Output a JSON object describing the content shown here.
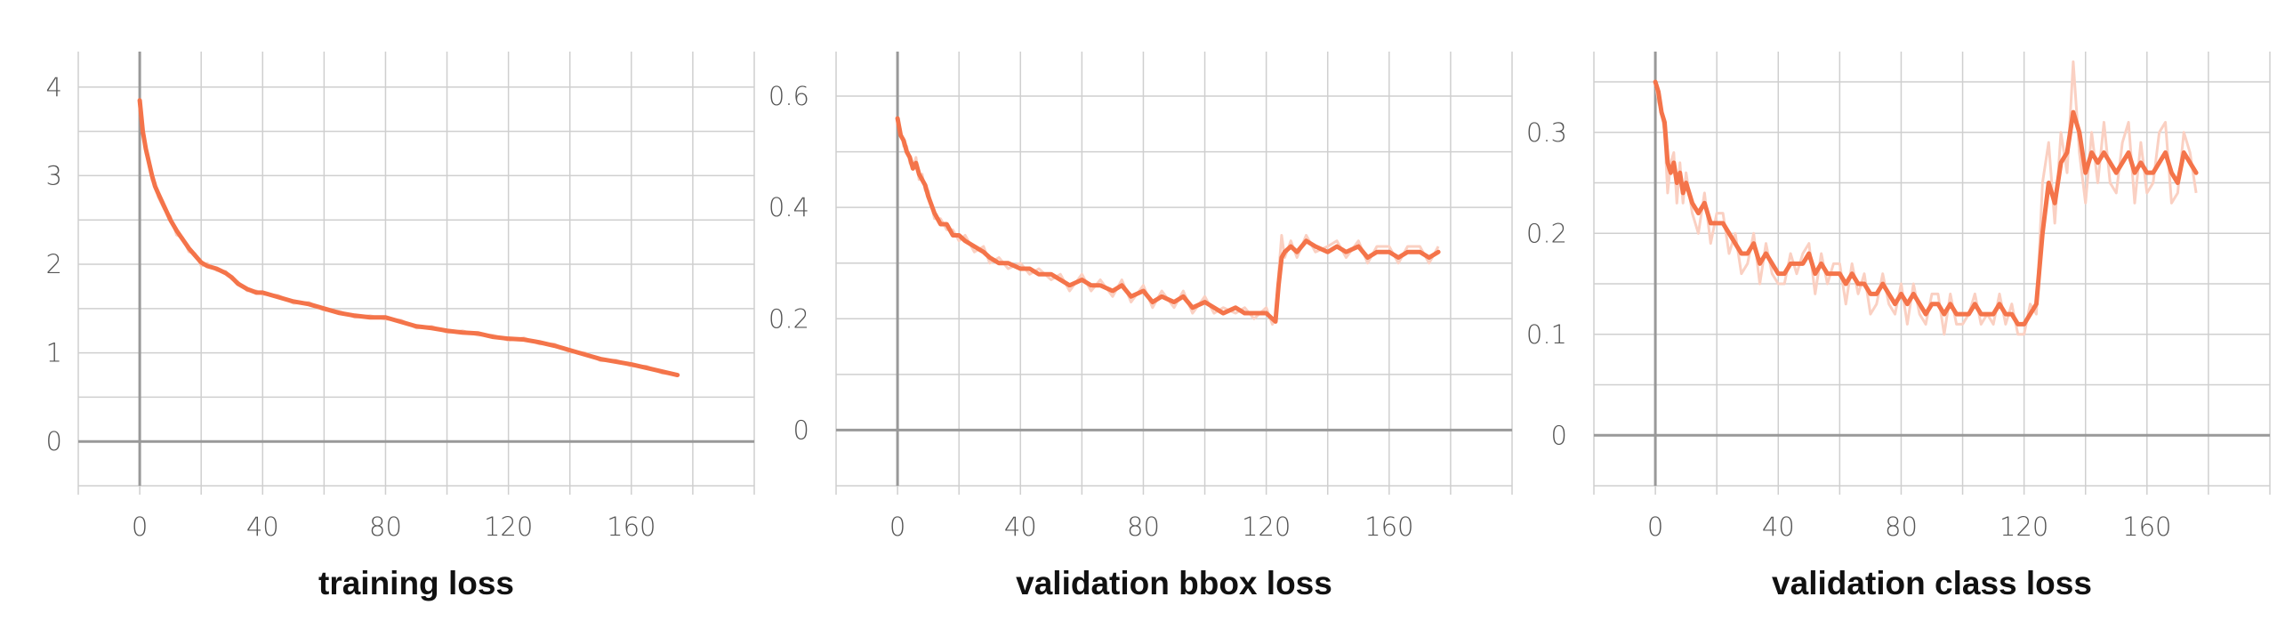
{
  "style": {
    "line_color": "#f4744a",
    "raw_color": "#fad0c2",
    "grid_color": "#cfcfcf",
    "axis_color": "#999999"
  },
  "chart_data": [
    {
      "type": "line",
      "title": "training loss",
      "xlabel": "",
      "ylabel": "",
      "xlim": [
        -20,
        200
      ],
      "ylim": [
        -0.5,
        4.4
      ],
      "xticks": [
        0,
        40,
        80,
        120,
        160
      ],
      "yticks": [
        0,
        1,
        2,
        3,
        4
      ],
      "grid": true,
      "series": [
        {
          "x": [
            0,
            1,
            2,
            3,
            4,
            5,
            6,
            8,
            10,
            12,
            14,
            16,
            18,
            20,
            22,
            25,
            28,
            30,
            32,
            35,
            38,
            40,
            45,
            50,
            55,
            60,
            65,
            70,
            75,
            80,
            85,
            90,
            95,
            100,
            105,
            110,
            115,
            120,
            125,
            130,
            135,
            140,
            145,
            150,
            155,
            160,
            165,
            170,
            175
          ],
          "y": [
            3.85,
            3.5,
            3.3,
            3.15,
            3.0,
            2.88,
            2.8,
            2.65,
            2.5,
            2.38,
            2.28,
            2.18,
            2.1,
            2.02,
            1.98,
            1.95,
            1.9,
            1.85,
            1.78,
            1.72,
            1.68,
            1.68,
            1.63,
            1.58,
            1.55,
            1.5,
            1.45,
            1.42,
            1.4,
            1.4,
            1.35,
            1.3,
            1.28,
            1.25,
            1.23,
            1.22,
            1.18,
            1.16,
            1.15,
            1.12,
            1.08,
            1.03,
            0.98,
            0.93,
            0.9,
            0.87,
            0.83,
            0.79,
            0.75
          ],
          "raw_y": [
            3.78,
            3.55,
            3.25,
            3.18,
            2.95,
            2.92,
            2.76,
            2.62,
            2.54,
            2.33,
            2.3,
            2.14,
            2.12,
            1.98,
            2.01,
            1.93,
            1.92,
            1.83,
            1.8,
            1.7,
            1.7,
            1.66,
            1.65,
            1.56,
            1.57,
            1.48,
            1.47,
            1.4,
            1.42,
            1.38,
            1.37,
            1.28,
            1.3,
            1.23,
            1.25,
            1.2,
            1.2,
            1.14,
            1.17,
            1.1,
            1.1,
            1.01,
            1.0,
            0.91,
            0.92,
            0.85,
            0.85,
            0.77,
            0.76
          ]
        }
      ]
    },
    {
      "type": "line",
      "title": "validation bbox loss",
      "xlabel": "",
      "ylabel": "",
      "xlim": [
        -20,
        200
      ],
      "ylim": [
        -0.1,
        0.68
      ],
      "xticks": [
        0,
        40,
        80,
        120,
        160
      ],
      "yticks": [
        0,
        0.2,
        0.4,
        0.6
      ],
      "grid": true,
      "series": [
        {
          "x": [
            0,
            1,
            2,
            3,
            4,
            5,
            6,
            7,
            8,
            9,
            10,
            12,
            14,
            16,
            18,
            20,
            22,
            25,
            28,
            30,
            33,
            36,
            40,
            43,
            46,
            50,
            53,
            56,
            60,
            63,
            66,
            70,
            73,
            76,
            80,
            83,
            86,
            90,
            93,
            96,
            100,
            103,
            106,
            110,
            113,
            116,
            120,
            122,
            123,
            124,
            125,
            126,
            128,
            130,
            133,
            136,
            140,
            143,
            146,
            150,
            153,
            156,
            160,
            163,
            166,
            170,
            173,
            176
          ],
          "y": [
            0.56,
            0.53,
            0.52,
            0.5,
            0.49,
            0.47,
            0.48,
            0.46,
            0.45,
            0.44,
            0.42,
            0.39,
            0.37,
            0.37,
            0.35,
            0.35,
            0.34,
            0.33,
            0.32,
            0.31,
            0.3,
            0.3,
            0.29,
            0.29,
            0.28,
            0.28,
            0.27,
            0.26,
            0.27,
            0.26,
            0.26,
            0.25,
            0.26,
            0.24,
            0.25,
            0.23,
            0.24,
            0.23,
            0.24,
            0.22,
            0.23,
            0.22,
            0.21,
            0.22,
            0.21,
            0.21,
            0.21,
            0.2,
            0.195,
            0.26,
            0.31,
            0.32,
            0.33,
            0.32,
            0.34,
            0.33,
            0.32,
            0.33,
            0.32,
            0.33,
            0.31,
            0.32,
            0.32,
            0.31,
            0.32,
            0.32,
            0.31,
            0.32
          ],
          "raw_y": [
            0.56,
            0.54,
            0.51,
            0.51,
            0.48,
            0.47,
            0.49,
            0.45,
            0.46,
            0.43,
            0.43,
            0.38,
            0.38,
            0.36,
            0.36,
            0.34,
            0.35,
            0.32,
            0.33,
            0.3,
            0.31,
            0.29,
            0.3,
            0.28,
            0.29,
            0.27,
            0.28,
            0.25,
            0.28,
            0.25,
            0.27,
            0.24,
            0.27,
            0.23,
            0.26,
            0.22,
            0.25,
            0.22,
            0.25,
            0.21,
            0.24,
            0.21,
            0.22,
            0.21,
            0.22,
            0.2,
            0.22,
            0.19,
            0.2,
            0.28,
            0.35,
            0.31,
            0.34,
            0.31,
            0.35,
            0.32,
            0.33,
            0.34,
            0.31,
            0.34,
            0.3,
            0.33,
            0.33,
            0.3,
            0.33,
            0.33,
            0.3,
            0.33
          ]
        }
      ]
    },
    {
      "type": "line",
      "title": "validation class loss",
      "xlabel": "",
      "ylabel": "",
      "xlim": [
        -20,
        200
      ],
      "ylim": [
        -0.05,
        0.38
      ],
      "xticks": [
        0,
        40,
        80,
        120,
        160
      ],
      "yticks": [
        0,
        0.1,
        0.2,
        0.3
      ],
      "grid": true,
      "series": [
        {
          "x": [
            0,
            1,
            2,
            3,
            4,
            5,
            6,
            7,
            8,
            9,
            10,
            12,
            14,
            16,
            18,
            20,
            22,
            24,
            26,
            28,
            30,
            32,
            34,
            36,
            38,
            40,
            42,
            44,
            46,
            48,
            50,
            52,
            54,
            56,
            58,
            60,
            62,
            64,
            66,
            68,
            70,
            72,
            74,
            76,
            78,
            80,
            82,
            84,
            86,
            88,
            90,
            92,
            94,
            96,
            98,
            100,
            102,
            104,
            106,
            108,
            110,
            112,
            114,
            116,
            118,
            120,
            122,
            124,
            126,
            128,
            130,
            132,
            134,
            136,
            138,
            140,
            142,
            144,
            146,
            148,
            150,
            152,
            154,
            156,
            158,
            160,
            162,
            164,
            166,
            168,
            170,
            172,
            174,
            176
          ],
          "y": [
            0.35,
            0.34,
            0.32,
            0.31,
            0.27,
            0.26,
            0.27,
            0.25,
            0.26,
            0.24,
            0.25,
            0.23,
            0.22,
            0.23,
            0.21,
            0.21,
            0.21,
            0.2,
            0.19,
            0.18,
            0.18,
            0.19,
            0.17,
            0.18,
            0.17,
            0.16,
            0.16,
            0.17,
            0.17,
            0.17,
            0.18,
            0.16,
            0.17,
            0.16,
            0.16,
            0.16,
            0.15,
            0.16,
            0.15,
            0.15,
            0.14,
            0.14,
            0.15,
            0.14,
            0.13,
            0.14,
            0.13,
            0.14,
            0.13,
            0.12,
            0.13,
            0.13,
            0.12,
            0.13,
            0.12,
            0.12,
            0.12,
            0.13,
            0.12,
            0.12,
            0.12,
            0.13,
            0.12,
            0.12,
            0.11,
            0.11,
            0.12,
            0.13,
            0.2,
            0.25,
            0.23,
            0.27,
            0.28,
            0.32,
            0.3,
            0.26,
            0.28,
            0.27,
            0.28,
            0.27,
            0.26,
            0.27,
            0.28,
            0.26,
            0.27,
            0.26,
            0.26,
            0.27,
            0.28,
            0.26,
            0.25,
            0.28,
            0.27,
            0.26
          ],
          "raw_y": [
            0.35,
            0.33,
            0.32,
            0.3,
            0.24,
            0.27,
            0.28,
            0.23,
            0.27,
            0.23,
            0.26,
            0.22,
            0.2,
            0.24,
            0.19,
            0.22,
            0.22,
            0.18,
            0.2,
            0.16,
            0.17,
            0.2,
            0.15,
            0.19,
            0.16,
            0.15,
            0.15,
            0.18,
            0.16,
            0.18,
            0.19,
            0.14,
            0.18,
            0.15,
            0.17,
            0.17,
            0.13,
            0.17,
            0.14,
            0.16,
            0.12,
            0.13,
            0.16,
            0.13,
            0.12,
            0.15,
            0.11,
            0.15,
            0.12,
            0.11,
            0.14,
            0.14,
            0.1,
            0.14,
            0.11,
            0.11,
            0.12,
            0.14,
            0.11,
            0.12,
            0.11,
            0.14,
            0.11,
            0.13,
            0.1,
            0.1,
            0.13,
            0.12,
            0.25,
            0.29,
            0.21,
            0.3,
            0.26,
            0.37,
            0.28,
            0.23,
            0.3,
            0.25,
            0.31,
            0.25,
            0.24,
            0.29,
            0.31,
            0.23,
            0.29,
            0.24,
            0.25,
            0.3,
            0.31,
            0.23,
            0.24,
            0.3,
            0.28,
            0.24
          ]
        }
      ]
    }
  ]
}
